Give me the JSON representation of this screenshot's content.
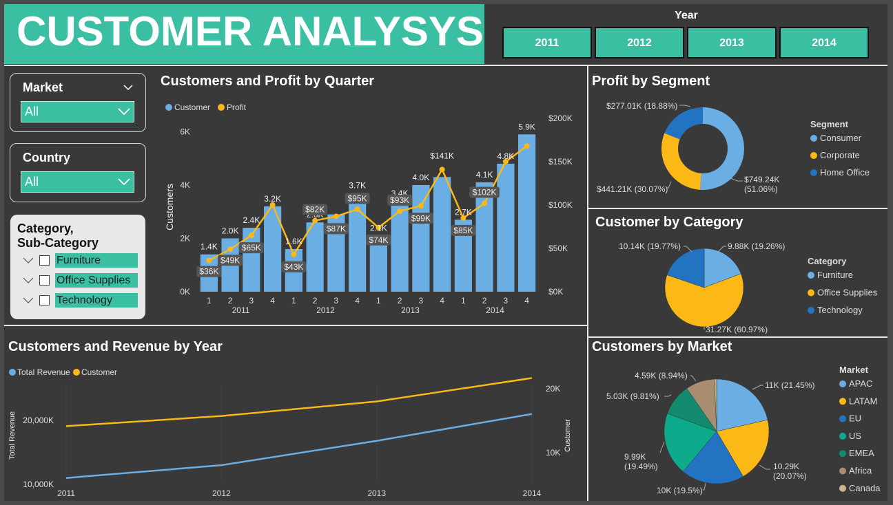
{
  "header": {
    "title": "CUSTOMER ANALYSYS",
    "year_label": "Year",
    "years": [
      "2011",
      "2012",
      "2013",
      "2014"
    ]
  },
  "slicers": {
    "market": {
      "title": "Market",
      "value": "All"
    },
    "country": {
      "title": "Country",
      "value": "All"
    },
    "category": {
      "title_line1": "Category,",
      "title_line2": "Sub-Category",
      "items": [
        "Furniture",
        "Office Supplies",
        "Technology"
      ]
    }
  },
  "colors": {
    "teal": "#3bbfa3",
    "blue": "#6aaee4",
    "yellow": "#fbb817",
    "darkblue": "#2274c2",
    "green": "#0dab8c",
    "darkgreen": "#128a6f",
    "tan": "#a88d70",
    "lighttan": "#c9b58d",
    "bg": "#393939"
  },
  "quarter_chart": {
    "title": "Customers and Profit by Quarter",
    "legend": [
      "Customer",
      "Profit"
    ],
    "ylabel_left": "Customers",
    "ylabel_right": "Profit",
    "left_ticks": [
      "0K",
      "2K",
      "4K",
      "6K"
    ],
    "right_ticks": [
      "$0K",
      "$50K",
      "$100K",
      "$150K",
      "$200K"
    ]
  },
  "year_chart": {
    "title": "Customers and Revenue by Year",
    "legend": [
      "Total Revenue",
      "Customer"
    ],
    "ylabel_left": "Total Revenue",
    "ylabel_right": "Customer",
    "left_ticks": [
      "10,000K",
      "20,000K"
    ],
    "right_ticks": [
      "10K",
      "20K"
    ]
  },
  "segment_chart": {
    "title": "Profit by Segment",
    "legend_title": "Segment",
    "legend": [
      "Consumer",
      "Corporate",
      "Home Office"
    ],
    "labels": [
      "$749.24K\n(51.06%)",
      "$441.21K (30.07%)",
      "$277.01K (18.88%)"
    ]
  },
  "category_chart": {
    "title": "Customer by Category",
    "legend_title": "Category",
    "legend": [
      "Furniture",
      "Office Supplies",
      "Technology"
    ],
    "labels": [
      "9.88K (19.26%)",
      "31.27K (60.97%)",
      "10.14K (19.77%)"
    ]
  },
  "market_chart": {
    "title": "Customers by Market",
    "legend_title": "Market",
    "legend": [
      "APAC",
      "LATAM",
      "EU",
      "US",
      "EMEA",
      "Africa",
      "Canada"
    ],
    "labels": [
      "11K (21.45%)",
      "10.29K\n(20.07%)",
      "10K (19.5%)",
      "9.99K\n(19.49%)",
      "5.03K (9.81%)",
      "4.59K (8.94%)",
      ""
    ]
  },
  "chart_data": [
    {
      "type": "bar",
      "title": "Customers and Profit by Quarter",
      "categories": [
        "2011 Q1",
        "2011 Q2",
        "2011 Q3",
        "2011 Q4",
        "2012 Q1",
        "2012 Q2",
        "2012 Q3",
        "2012 Q4",
        "2013 Q1",
        "2013 Q2",
        "2013 Q3",
        "2013 Q4",
        "2014 Q1",
        "2014 Q2",
        "2014 Q3",
        "2014 Q4"
      ],
      "quarter_labels": [
        "1",
        "2",
        "3",
        "4",
        "1",
        "2",
        "3",
        "4",
        "1",
        "2",
        "3",
        "4",
        "1",
        "2",
        "3",
        "4"
      ],
      "year_labels": [
        "2011",
        "2012",
        "2013",
        "2014"
      ],
      "series": [
        {
          "name": "Customer",
          "values": [
            1.4,
            2.0,
            2.4,
            3.2,
            1.6,
            2.6,
            2.9,
            3.7,
            2.1,
            3.4,
            4.0,
            4.3,
            2.7,
            4.1,
            4.8,
            5.9
          ],
          "labels": [
            "1.4K",
            "2.0K",
            "2.4K",
            "3.2K",
            "1.6K",
            "2.6K",
            "",
            "3.7K",
            "2.1K",
            "3.4K",
            "4.0K",
            "",
            "2.7K",
            "4.1K",
            "4.8K",
            "5.9K"
          ]
        },
        {
          "name": "Profit",
          "values": [
            36,
            49,
            65,
            100,
            43,
            82,
            87,
            95,
            74,
            93,
            99,
            141,
            85,
            102,
            150,
            168
          ],
          "labels": [
            "$36K",
            "$49K",
            "$65K",
            "",
            "$43K",
            "$82K",
            "$87K",
            "$95K",
            "$74K",
            "$93K",
            "$99K",
            "$141K",
            "$85K",
            "$102K",
            "",
            ""
          ]
        }
      ],
      "ylim_left": [
        0,
        6.5
      ],
      "ylim_right": [
        0,
        200
      ]
    },
    {
      "type": "line",
      "title": "Customers and Revenue by Year",
      "x": [
        "2011",
        "2012",
        "2013",
        "2014"
      ],
      "series": [
        {
          "name": "Total Revenue",
          "values": [
            11000,
            13000,
            16800,
            21000
          ]
        },
        {
          "name": "Customer",
          "values": [
            14200,
            15800,
            18100,
            21800
          ]
        }
      ]
    },
    {
      "type": "pie",
      "title": "Profit by Segment",
      "categories": [
        "Consumer",
        "Corporate",
        "Home Office"
      ],
      "values": [
        749.24,
        441.21,
        277.01
      ]
    },
    {
      "type": "pie",
      "title": "Customer by Category",
      "categories": [
        "Furniture",
        "Office Supplies",
        "Technology"
      ],
      "values": [
        9.88,
        31.27,
        10.14
      ]
    },
    {
      "type": "pie",
      "title": "Customers by Market",
      "categories": [
        "APAC",
        "LATAM",
        "EU",
        "US",
        "EMEA",
        "Africa",
        "Canada"
      ],
      "values": [
        11,
        10.29,
        10,
        9.99,
        5.03,
        4.59,
        0.35
      ]
    }
  ]
}
